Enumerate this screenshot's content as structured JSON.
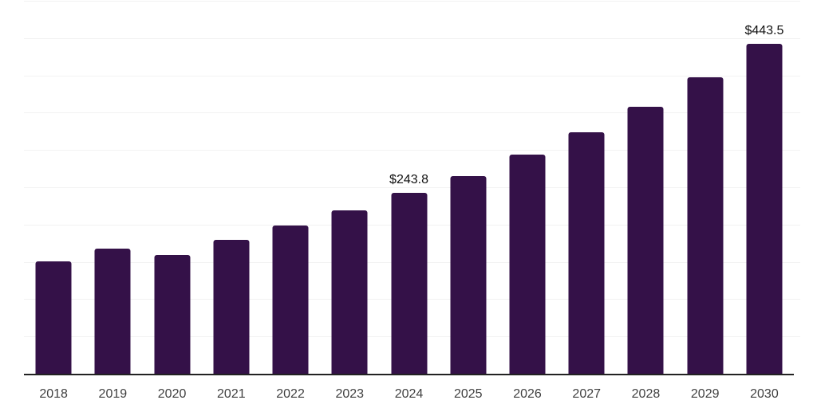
{
  "chart_data": {
    "type": "bar",
    "title": "",
    "xlabel": "",
    "ylabel": "",
    "categories": [
      "2018",
      "2019",
      "2020",
      "2021",
      "2022",
      "2023",
      "2024",
      "2025",
      "2026",
      "2027",
      "2028",
      "2029",
      "2030"
    ],
    "values": [
      151.5,
      169.3,
      160.4,
      181.0,
      199.5,
      220.2,
      243.8,
      266.3,
      294.6,
      324.3,
      359.5,
      398.4,
      443.5
    ],
    "value_prefix": "$",
    "labeled_points": [
      {
        "category": "2024",
        "label": "$243.8"
      },
      {
        "category": "2030",
        "label": "$443.5"
      }
    ],
    "ylim": [
      0,
      500
    ],
    "gridline_interval": 50,
    "grid": "horizontal",
    "y_tick_labels_visible": false,
    "legend": "none",
    "colors": {
      "bar": "#341148",
      "gridline": "#f2f2f2",
      "axis_line": "#222222",
      "x_tick_label": "#404040",
      "data_label": "#111111",
      "background": "#ffffff"
    }
  }
}
